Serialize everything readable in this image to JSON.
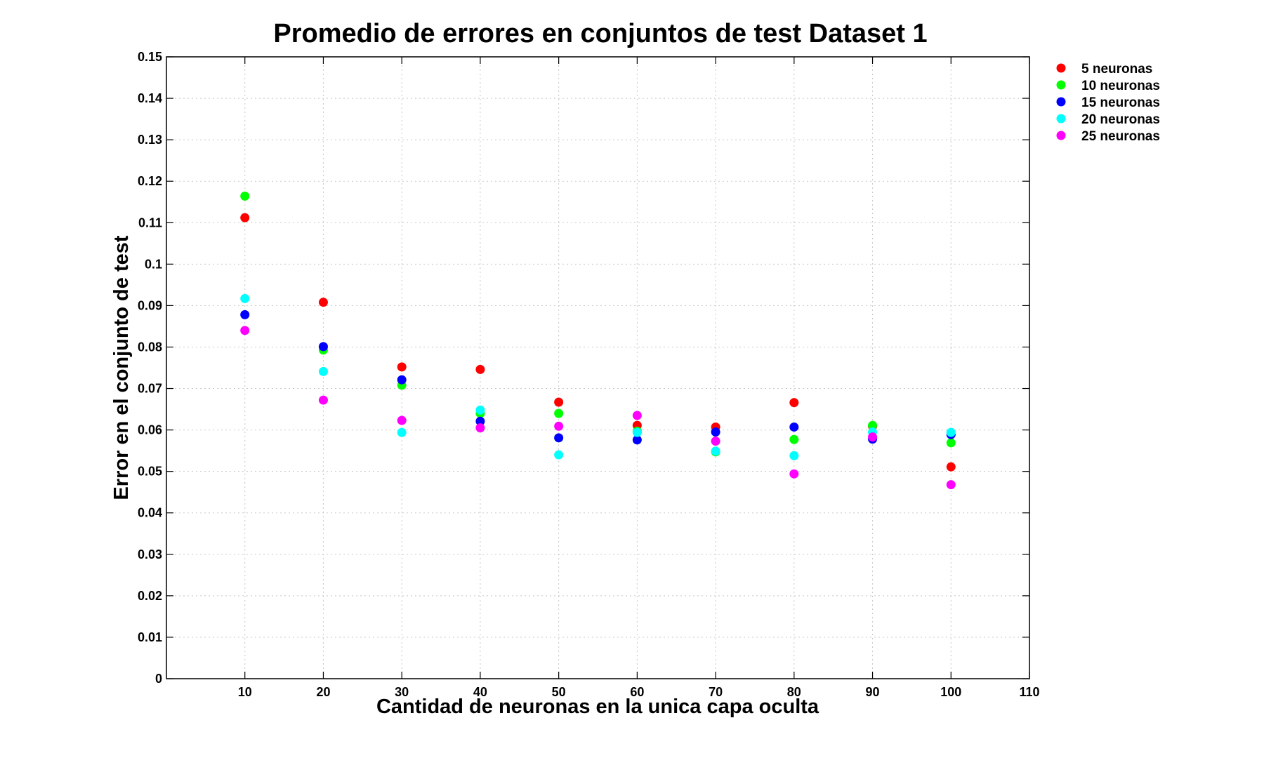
{
  "chart_data": {
    "type": "scatter",
    "title": "Promedio de errores en conjuntos de test Dataset 1",
    "xlabel": "Cantidad de neuronas en la unica capa oculta",
    "ylabel": "Error en el conjunto de test",
    "xlim": [
      0,
      110
    ],
    "ylim": [
      0,
      0.15
    ],
    "xticks": [
      10,
      20,
      30,
      40,
      50,
      60,
      70,
      80,
      90,
      100,
      110
    ],
    "xtick_labels": [
      "10",
      "20",
      "30",
      "40",
      "50",
      "60",
      "70",
      "80",
      "90",
      "100",
      "110"
    ],
    "yticks": [
      0,
      0.01,
      0.02,
      0.03,
      0.04,
      0.05,
      0.06,
      0.07,
      0.08,
      0.09,
      0.1,
      0.11,
      0.12,
      0.13,
      0.14,
      0.15
    ],
    "ytick_labels": [
      "0",
      "0.01",
      "0.02",
      "0.03",
      "0.04",
      "0.05",
      "0.06",
      "0.07",
      "0.08",
      "0.09",
      "0.1",
      "0.11",
      "0.12",
      "0.13",
      "0.14",
      "0.15"
    ],
    "grid": true,
    "legend_position": "outside-top-right",
    "x": [
      10,
      20,
      30,
      40,
      50,
      60,
      70,
      80,
      90,
      100
    ],
    "series": [
      {
        "name": "5 neuronas",
        "color": "#ff0000",
        "values": [
          0.1112,
          0.0908,
          0.0752,
          0.0746,
          0.0667,
          0.0611,
          0.0607,
          0.0666,
          0.0609,
          0.0511
        ]
      },
      {
        "name": "10 neuronas",
        "color": "#00ff00",
        "values": [
          0.1164,
          0.0793,
          0.0708,
          0.064,
          0.064,
          0.0597,
          0.0547,
          0.0577,
          0.0611,
          0.0569
        ]
      },
      {
        "name": "15 neuronas",
        "color": "#0000ff",
        "values": [
          0.0878,
          0.0801,
          0.0721,
          0.0621,
          0.0581,
          0.0576,
          0.0595,
          0.0607,
          0.0578,
          0.0589
        ]
      },
      {
        "name": "20 neuronas",
        "color": "#00ffff",
        "values": [
          0.0917,
          0.0741,
          0.0594,
          0.0648,
          0.054,
          0.0594,
          0.0549,
          0.0538,
          0.0595,
          0.0594
        ]
      },
      {
        "name": "25 neuronas",
        "color": "#ff00ff",
        "values": [
          0.084,
          0.0672,
          0.0623,
          0.0605,
          0.0609,
          0.0635,
          0.0573,
          0.0494,
          0.0583,
          0.0468
        ]
      }
    ]
  }
}
